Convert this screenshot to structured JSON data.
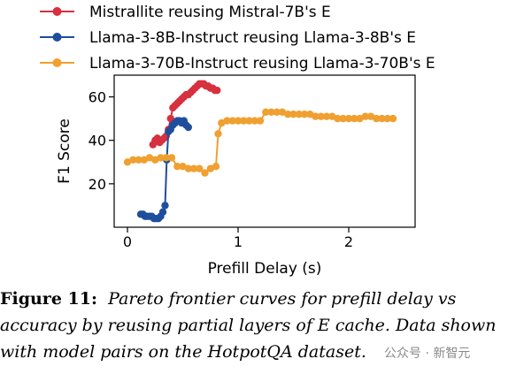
{
  "chart_data": {
    "type": "line",
    "xlabel": "Prefill Delay (s)",
    "ylabel": "F1 Score",
    "xlim": [
      -0.12,
      2.6
    ],
    "ylim": [
      0,
      70
    ],
    "xticks": [
      0,
      1,
      2
    ],
    "yticks": [
      20,
      40,
      60
    ],
    "legend": "top",
    "grid": false,
    "series": [
      {
        "name": "Mistrallite reusing Mistral-7B's E",
        "color": "#d7303f",
        "x": [
          0.23,
          0.25,
          0.27,
          0.29,
          0.31,
          0.33,
          0.35,
          0.37,
          0.39,
          0.41,
          0.43,
          0.45,
          0.47,
          0.49,
          0.51,
          0.53,
          0.55,
          0.57,
          0.59,
          0.61,
          0.63,
          0.65,
          0.67,
          0.69,
          0.71,
          0.73,
          0.75,
          0.77,
          0.79,
          0.81
        ],
        "y": [
          38,
          40,
          41,
          39,
          40,
          41,
          42,
          45,
          50,
          55,
          56,
          57,
          58,
          59,
          60,
          61,
          61,
          62,
          63,
          64,
          65,
          66,
          66,
          66,
          65,
          65,
          64,
          64,
          63,
          63
        ]
      },
      {
        "name": "Llama-3-8B-Instruct reusing Llama-3-8B's E",
        "color": "#1f4e9c",
        "x": [
          0.12,
          0.14,
          0.16,
          0.18,
          0.2,
          0.22,
          0.24,
          0.26,
          0.28,
          0.3,
          0.32,
          0.34,
          0.355,
          0.37,
          0.39,
          0.41,
          0.43,
          0.45,
          0.47,
          0.49,
          0.51,
          0.53,
          0.55
        ],
        "y": [
          6,
          6,
          5,
          5,
          5,
          5,
          4,
          4,
          4,
          5,
          7,
          10,
          31,
          44,
          45,
          47,
          48,
          49,
          49,
          48,
          49,
          47,
          46
        ]
      },
      {
        "name": "Llama-3-70B-Instruct reusing Llama-3-70B's E",
        "color": "#f0a030",
        "x": [
          0.0,
          0.05,
          0.1,
          0.15,
          0.2,
          0.25,
          0.3,
          0.35,
          0.4,
          0.45,
          0.5,
          0.55,
          0.6,
          0.65,
          0.7,
          0.75,
          0.8,
          0.82,
          0.85,
          0.9,
          0.95,
          1.0,
          1.05,
          1.1,
          1.15,
          1.2,
          1.25,
          1.3,
          1.35,
          1.4,
          1.45,
          1.5,
          1.55,
          1.6,
          1.65,
          1.7,
          1.75,
          1.8,
          1.85,
          1.9,
          1.95,
          2.0,
          2.05,
          2.1,
          2.15,
          2.2,
          2.25,
          2.3,
          2.35,
          2.4
        ],
        "y": [
          30,
          31,
          31,
          31,
          32,
          31,
          32,
          32,
          32,
          28,
          28,
          27,
          27,
          27,
          25,
          27,
          28,
          43,
          48,
          49,
          49,
          49,
          49,
          49,
          49,
          49,
          53,
          53,
          53,
          53,
          52,
          52,
          52,
          52,
          52,
          51,
          51,
          51,
          51,
          50,
          50,
          50,
          50,
          50,
          51,
          51,
          50,
          50,
          50,
          50
        ]
      }
    ]
  },
  "caption": {
    "label": "Figure 11:",
    "text_line1": "Pareto frontier curves for prefill delay vs",
    "text_line2": "accuracy by reusing partial layers of E cache. Data shown",
    "text_line3": "with model pairs on the HotpotQA dataset."
  },
  "watermark": "公众号 · 新智元"
}
